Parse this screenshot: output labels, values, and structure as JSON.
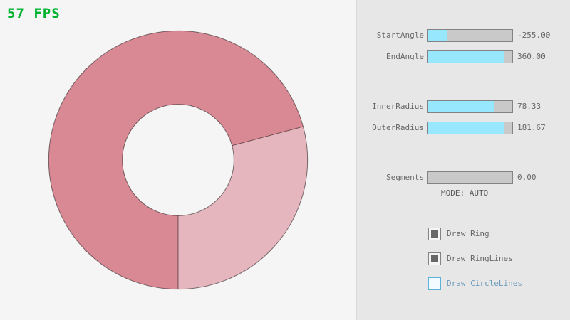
{
  "fps": {
    "text": "57 FPS"
  },
  "colors": {
    "canvas_bg": "#f5f5f5",
    "panel_bg": "#e7e7e7",
    "accent_fill": "#97e8ff",
    "slider_track": "#c9c9c9",
    "control_border": "#838383",
    "text_gray": "#686868",
    "ring_dark": "#d98994",
    "ring_light": "#e5b6bd",
    "ring_line": "rgba(0,0,0,0.5)",
    "fps_green": "#00b32f",
    "focus_blue": "#5bb2d9",
    "focus_text": "#6c9bbc",
    "focus_bg": "#f2fbff"
  },
  "ring": {
    "start_angle": "-255.00",
    "end_angle": "360.00",
    "inner_radius": "78.33",
    "outer_radius": "181.67",
    "segments": "0.00"
  },
  "panel": {
    "sliders": [
      {
        "label": "StartAngle",
        "value": "-255.00",
        "fill_pct": 21.7
      },
      {
        "label": "EndAngle",
        "value": "360.00",
        "fill_pct": 90.0
      },
      {
        "label": "InnerRadius",
        "value": "78.33",
        "fill_pct": 78.3
      },
      {
        "label": "OuterRadius",
        "value": "181.67",
        "fill_pct": 90.8
      },
      {
        "label": "Segments",
        "value": "0.00",
        "fill_pct": 0
      }
    ],
    "mode_text": "MODE: AUTO",
    "checkboxes": [
      {
        "label": "Draw Ring",
        "checked": true,
        "focused": false
      },
      {
        "label": "Draw RingLines",
        "checked": true,
        "focused": false
      },
      {
        "label": "Draw CircleLines",
        "checked": false,
        "focused": true
      }
    ]
  }
}
